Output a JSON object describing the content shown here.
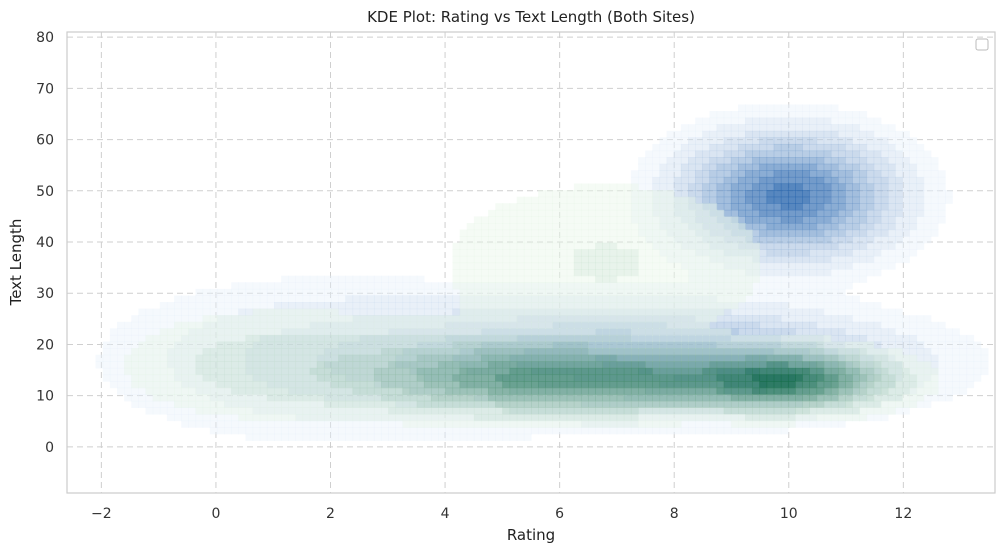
{
  "chart_data": {
    "type": "kde",
    "title": "KDE Plot: Rating vs Text Length (Both Sites)",
    "xlabel": "Rating",
    "ylabel": "Text Length",
    "xlim": [
      -2.6,
      13.6
    ],
    "ylim": [
      -9,
      81
    ],
    "xticks": [
      -2,
      0,
      2,
      4,
      6,
      8,
      10,
      12
    ],
    "xtick_labels": [
      "−2",
      "0",
      "2",
      "4",
      "6",
      "8",
      "10",
      "12"
    ],
    "yticks": [
      0,
      10,
      20,
      30,
      40,
      50,
      60,
      70,
      80
    ],
    "ytick_labels": [
      "0",
      "10",
      "20",
      "30",
      "40",
      "50",
      "60",
      "70",
      "80"
    ],
    "grid": true,
    "legend": {
      "placement": "top-right",
      "entries": []
    },
    "series": [
      {
        "colormap": "blues",
        "levels": 9,
        "components": [
          {
            "mx": 10.0,
            "my": 49,
            "sx": 1.0,
            "sy": 6.5,
            "w": 1.0
          },
          {
            "mx": 7.0,
            "my": 17,
            "sx": 2.4,
            "sy": 5.5,
            "w": 0.75
          },
          {
            "mx": 9.6,
            "my": 14,
            "sx": 1.1,
            "sy": 3.5,
            "w": 0.55
          },
          {
            "mx": 2.0,
            "my": 17,
            "sx": 2.0,
            "sy": 8.0,
            "w": 0.15
          }
        ]
      },
      {
        "colormap": "greens",
        "levels": 9,
        "components": [
          {
            "mx": 10.0,
            "my": 13,
            "sx": 0.9,
            "sy": 3.0,
            "w": 1.0
          },
          {
            "mx": 7.2,
            "my": 13,
            "sx": 1.9,
            "sy": 3.2,
            "w": 0.8
          },
          {
            "mx": 4.8,
            "my": 14,
            "sx": 1.5,
            "sy": 4.0,
            "w": 0.4
          },
          {
            "mx": 1.2,
            "my": 16,
            "sx": 1.6,
            "sy": 6.0,
            "w": 0.12
          },
          {
            "mx": 6.8,
            "my": 36,
            "sx": 1.8,
            "sy": 10.0,
            "w": 0.08
          }
        ]
      }
    ]
  }
}
